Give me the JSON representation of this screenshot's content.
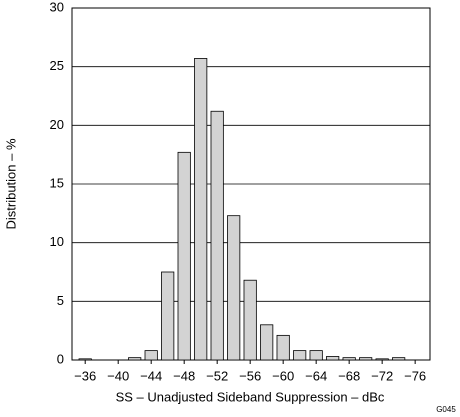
{
  "chart_data": {
    "type": "bar",
    "x_label": "SS – Unadjusted Sideband Suppression – dBc",
    "y_label": "Distribution – %",
    "figure_code": "G045",
    "x": [
      -36,
      -42,
      -44,
      -46,
      -48,
      -50,
      -52,
      -54,
      -56,
      -58,
      -60,
      -62,
      -64,
      -66,
      -68,
      -70,
      -72,
      -74
    ],
    "values": [
      0.1,
      0.2,
      0.8,
      7.5,
      17.7,
      25.7,
      21.2,
      12.3,
      6.8,
      3.0,
      2.1,
      0.8,
      0.8,
      0.3,
      0.2,
      0.2,
      0.1,
      0.2
    ],
    "color": "#d3d3d3",
    "xlim": [
      -34.4,
      -77.8
    ],
    "xticks": [
      {
        "value": -36,
        "label": "−36"
      },
      {
        "value": -40,
        "label": "−40"
      },
      {
        "value": -44,
        "label": "−44"
      },
      {
        "value": -48,
        "label": "−48"
      },
      {
        "value": -52,
        "label": "−52"
      },
      {
        "value": -56,
        "label": "−56"
      },
      {
        "value": -60,
        "label": "−60"
      },
      {
        "value": -64,
        "label": "−64"
      },
      {
        "value": -68,
        "label": "−68"
      },
      {
        "value": -72,
        "label": "−72"
      },
      {
        "value": -76,
        "label": "−76"
      }
    ],
    "ylim": [
      0,
      30
    ],
    "yticks": [
      0,
      5,
      10,
      15,
      20,
      25,
      30
    ],
    "grid": true
  }
}
